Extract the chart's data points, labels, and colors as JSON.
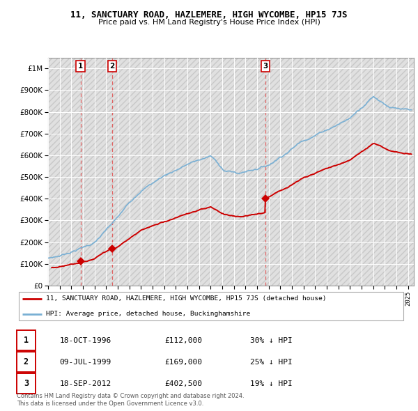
{
  "title": "11, SANCTUARY ROAD, HAZLEMERE, HIGH WYCOMBE, HP15 7JS",
  "subtitle": "Price paid vs. HM Land Registry's House Price Index (HPI)",
  "legend_label_red": "11, SANCTUARY ROAD, HAZLEMERE, HIGH WYCOMBE, HP15 7JS (detached house)",
  "legend_label_blue": "HPI: Average price, detached house, Buckinghamshire",
  "footer1": "Contains HM Land Registry data © Crown copyright and database right 2024.",
  "footer2": "This data is licensed under the Open Government Licence v3.0.",
  "transactions": [
    {
      "label": "1",
      "date": "18-OCT-1996",
      "price": 112000,
      "pct": "30%",
      "direction": "↓"
    },
    {
      "label": "2",
      "date": "09-JUL-1999",
      "price": 169000,
      "pct": "25%",
      "direction": "↓"
    },
    {
      "label": "3",
      "date": "18-SEP-2012",
      "price": 402500,
      "pct": "19%",
      "direction": "↓"
    }
  ],
  "transaction_dates_decimal": [
    1996.8,
    1999.52,
    2012.72
  ],
  "transaction_prices": [
    112000,
    169000,
    402500
  ],
  "red_line_color": "#cc0000",
  "blue_line_color": "#7ab0d4",
  "ylim_max": 1050000,
  "xlim_min": 1994.0,
  "xlim_max": 2025.5
}
